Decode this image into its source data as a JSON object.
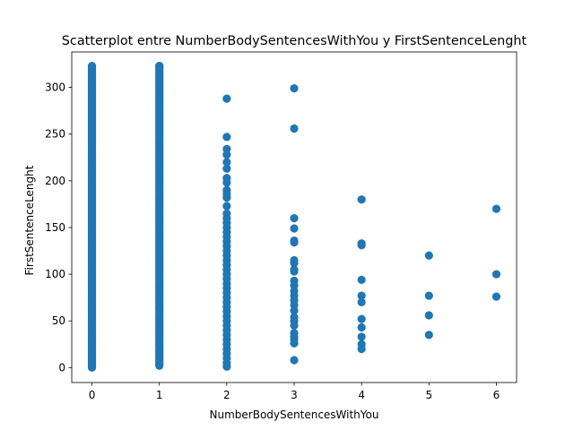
{
  "chart_data": {
    "type": "scatter",
    "title": "Scatterplot entre NumberBodySentencesWithYou y FirstSentenceLenght",
    "xlabel": "NumberBodySentencesWithYou",
    "ylabel": "FirstSentenceLenght",
    "xlim": [
      -0.3,
      6.3
    ],
    "ylim": [
      -16,
      338
    ],
    "xticks": [
      0,
      1,
      2,
      3,
      4,
      5,
      6
    ],
    "yticks": [
      0,
      50,
      100,
      150,
      200,
      250,
      300
    ],
    "grid": false,
    "marker_color": "#1f77b4",
    "series": [
      {
        "x_dense": [
          0,
          1
        ],
        "dense_ranges": [
          [
            0,
            323
          ],
          [
            2,
            323
          ]
        ],
        "points": [
          {
            "x": 2,
            "y": 288
          },
          {
            "x": 2,
            "y": 247
          },
          {
            "x": 2,
            "y": 234
          },
          {
            "x": 2,
            "y": 228
          },
          {
            "x": 2,
            "y": 220
          },
          {
            "x": 2,
            "y": 213
          },
          {
            "x": 2,
            "y": 203
          },
          {
            "x": 2,
            "y": 198
          },
          {
            "x": 2,
            "y": 190
          },
          {
            "x": 2,
            "y": 186
          },
          {
            "x": 2,
            "y": 182
          },
          {
            "x": 2,
            "y": 173
          },
          {
            "x": 2,
            "y": 165
          },
          {
            "x": 2,
            "y": 160
          },
          {
            "x": 2,
            "y": 155
          },
          {
            "x": 2,
            "y": 150
          },
          {
            "x": 2,
            "y": 145
          },
          {
            "x": 2,
            "y": 140
          },
          {
            "x": 2,
            "y": 135
          },
          {
            "x": 2,
            "y": 130
          },
          {
            "x": 2,
            "y": 125
          },
          {
            "x": 2,
            "y": 120
          },
          {
            "x": 2,
            "y": 115
          },
          {
            "x": 2,
            "y": 110
          },
          {
            "x": 2,
            "y": 105
          },
          {
            "x": 2,
            "y": 100
          },
          {
            "x": 2,
            "y": 95
          },
          {
            "x": 2,
            "y": 90
          },
          {
            "x": 2,
            "y": 85
          },
          {
            "x": 2,
            "y": 80
          },
          {
            "x": 2,
            "y": 75
          },
          {
            "x": 2,
            "y": 70
          },
          {
            "x": 2,
            "y": 65
          },
          {
            "x": 2,
            "y": 60
          },
          {
            "x": 2,
            "y": 55
          },
          {
            "x": 2,
            "y": 50
          },
          {
            "x": 2,
            "y": 45
          },
          {
            "x": 2,
            "y": 40
          },
          {
            "x": 2,
            "y": 35
          },
          {
            "x": 2,
            "y": 30
          },
          {
            "x": 2,
            "y": 25
          },
          {
            "x": 2,
            "y": 20
          },
          {
            "x": 2,
            "y": 15
          },
          {
            "x": 2,
            "y": 10
          },
          {
            "x": 2,
            "y": 5
          },
          {
            "x": 2,
            "y": 1
          },
          {
            "x": 3,
            "y": 299
          },
          {
            "x": 3,
            "y": 256
          },
          {
            "x": 3,
            "y": 160
          },
          {
            "x": 3,
            "y": 149
          },
          {
            "x": 3,
            "y": 136
          },
          {
            "x": 3,
            "y": 134
          },
          {
            "x": 3,
            "y": 115
          },
          {
            "x": 3,
            "y": 112
          },
          {
            "x": 3,
            "y": 105
          },
          {
            "x": 3,
            "y": 103
          },
          {
            "x": 3,
            "y": 93
          },
          {
            "x": 3,
            "y": 88
          },
          {
            "x": 3,
            "y": 82
          },
          {
            "x": 3,
            "y": 77
          },
          {
            "x": 3,
            "y": 72
          },
          {
            "x": 3,
            "y": 67
          },
          {
            "x": 3,
            "y": 61
          },
          {
            "x": 3,
            "y": 54
          },
          {
            "x": 3,
            "y": 50
          },
          {
            "x": 3,
            "y": 45
          },
          {
            "x": 3,
            "y": 37
          },
          {
            "x": 3,
            "y": 33
          },
          {
            "x": 3,
            "y": 30
          },
          {
            "x": 3,
            "y": 26
          },
          {
            "x": 3,
            "y": 8
          },
          {
            "x": 4,
            "y": 180
          },
          {
            "x": 4,
            "y": 133
          },
          {
            "x": 4,
            "y": 131
          },
          {
            "x": 4,
            "y": 94
          },
          {
            "x": 4,
            "y": 77
          },
          {
            "x": 4,
            "y": 70
          },
          {
            "x": 4,
            "y": 52
          },
          {
            "x": 4,
            "y": 43
          },
          {
            "x": 4,
            "y": 33
          },
          {
            "x": 4,
            "y": 25
          },
          {
            "x": 4,
            "y": 20
          },
          {
            "x": 5,
            "y": 120
          },
          {
            "x": 5,
            "y": 77
          },
          {
            "x": 5,
            "y": 56
          },
          {
            "x": 5,
            "y": 35
          },
          {
            "x": 6,
            "y": 170
          },
          {
            "x": 6,
            "y": 100
          },
          {
            "x": 6,
            "y": 76
          }
        ]
      }
    ]
  }
}
